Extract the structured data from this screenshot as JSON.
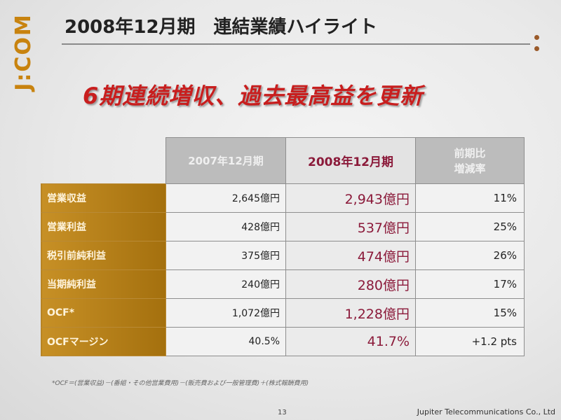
{
  "brand": {
    "logo_text": "J:COM",
    "logo_color": "#c8830f"
  },
  "slide": {
    "title": "2008年12月期　連結業績ハイライト",
    "headline": "6期連続増収、過去最高益を更新",
    "headline_color": "#c81e1e"
  },
  "table": {
    "headers": {
      "col_2007": "2007年12月期",
      "col_2008": "2008年12月期",
      "col_rate_line1": "前期比",
      "col_rate_line2": "増減率"
    },
    "rows": [
      {
        "label": "営業収益",
        "v2007": "2,645億円",
        "v2008": "2,943億円",
        "rate": "11%"
      },
      {
        "label": "営業利益",
        "v2007": "428億円",
        "v2008": "537億円",
        "rate": "25%"
      },
      {
        "label": "税引前純利益",
        "v2007": "375億円",
        "v2008": "474億円",
        "rate": "26%"
      },
      {
        "label": "当期純利益",
        "v2007": "240億円",
        "v2008": "280億円",
        "rate": "17%"
      },
      {
        "label": "OCF*",
        "v2007": "1,072億円",
        "v2008": "1,228億円",
        "rate": "15%"
      },
      {
        "label": "OCFマージン",
        "v2007": "40.5%",
        "v2008": "41.7%",
        "rate": "+1.2 pts"
      }
    ]
  },
  "footnote": "*OCF＝(営業収益)－(番組・その他営業費用)－(販売費および一般管理費)＋(株式報酬費用)",
  "footer": {
    "page_number": "13",
    "company": "Jupiter Telecommunications Co., Ltd"
  }
}
